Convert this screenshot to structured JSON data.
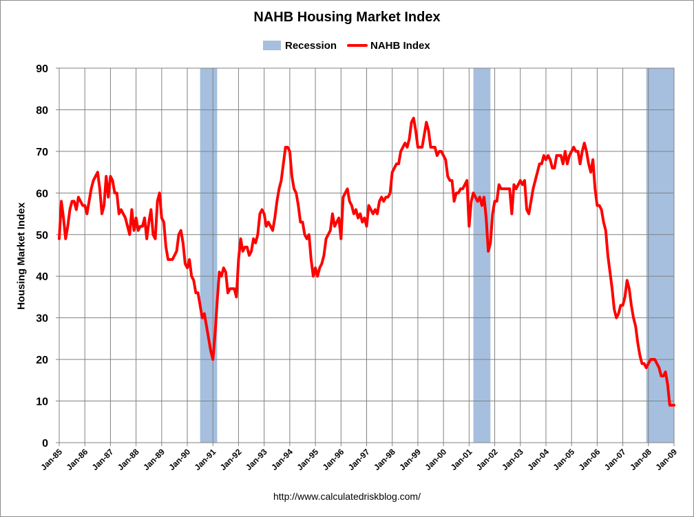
{
  "chart_data": {
    "type": "line",
    "title": "NAHB Housing Market Index",
    "ylabel": "Housing Market Index",
    "xlabel": "",
    "ylim": [
      0,
      90
    ],
    "yticks": [
      0,
      10,
      20,
      30,
      40,
      50,
      60,
      70,
      80,
      90
    ],
    "xrange": [
      "1985-01",
      "2009-01"
    ],
    "x_tick_labels": [
      "Jan-85",
      "Jan-86",
      "Jan-87",
      "Jan-88",
      "Jan-89",
      "Jan-90",
      "Jan-91",
      "Jan-92",
      "Jan-93",
      "Jan-94",
      "Jan-95",
      "Jan-96",
      "Jan-97",
      "Jan-98",
      "Jan-99",
      "Jan-00",
      "Jan-01",
      "Jan-02",
      "Jan-03",
      "Jan-04",
      "Jan-05",
      "Jan-06",
      "Jan-07",
      "Jan-08",
      "Jan-09"
    ],
    "grid": true,
    "legend_position": "top",
    "source": "http://www.calculatedriskblog.com/",
    "colors": {
      "recession": "#a6bfdf",
      "line": "#ff0000",
      "grid": "#808080",
      "plot_border": "#808080"
    },
    "recessions": {
      "name": "Recession",
      "periods": [
        [
          "1990-07",
          "1991-03"
        ],
        [
          "2001-03",
          "2001-11"
        ],
        [
          "2007-12",
          "2009-01"
        ]
      ]
    },
    "series": [
      {
        "name": "NAHB Index",
        "points": [
          [
            "1985-01",
            49
          ],
          [
            "1985-02",
            58
          ],
          [
            "1985-03",
            54
          ],
          [
            "1985-04",
            49
          ],
          [
            "1985-05",
            52
          ],
          [
            "1985-06",
            56
          ],
          [
            "1985-07",
            58
          ],
          [
            "1985-08",
            58
          ],
          [
            "1985-09",
            56
          ],
          [
            "1985-10",
            59
          ],
          [
            "1985-11",
            58
          ],
          [
            "1985-12",
            57
          ],
          [
            "1986-01",
            57
          ],
          [
            "1986-02",
            55
          ],
          [
            "1986-03",
            58
          ],
          [
            "1986-04",
            61
          ],
          [
            "1986-05",
            63
          ],
          [
            "1986-06",
            64
          ],
          [
            "1986-07",
            65
          ],
          [
            "1986-08",
            61
          ],
          [
            "1986-09",
            55
          ],
          [
            "1986-10",
            57
          ],
          [
            "1986-11",
            64
          ],
          [
            "1986-12",
            59
          ],
          [
            "1987-01",
            64
          ],
          [
            "1987-02",
            63
          ],
          [
            "1987-03",
            60
          ],
          [
            "1987-04",
            60
          ],
          [
            "1987-05",
            55
          ],
          [
            "1987-06",
            56
          ],
          [
            "1987-07",
            55
          ],
          [
            "1987-08",
            54
          ],
          [
            "1987-09",
            52
          ],
          [
            "1987-10",
            50
          ],
          [
            "1987-11",
            56
          ],
          [
            "1987-12",
            51
          ],
          [
            "1988-01",
            54
          ],
          [
            "1988-02",
            51
          ],
          [
            "1988-03",
            52
          ],
          [
            "1988-04",
            52
          ],
          [
            "1988-05",
            54
          ],
          [
            "1988-06",
            49
          ],
          [
            "1988-07",
            53
          ],
          [
            "1988-08",
            56
          ],
          [
            "1988-09",
            50
          ],
          [
            "1988-10",
            49
          ],
          [
            "1988-11",
            58
          ],
          [
            "1988-12",
            60
          ],
          [
            "1989-01",
            54
          ],
          [
            "1989-02",
            53
          ],
          [
            "1989-03",
            47
          ],
          [
            "1989-04",
            44
          ],
          [
            "1989-05",
            44
          ],
          [
            "1989-06",
            44
          ],
          [
            "1989-07",
            45
          ],
          [
            "1989-08",
            46
          ],
          [
            "1989-09",
            50
          ],
          [
            "1989-10",
            51
          ],
          [
            "1989-11",
            48
          ],
          [
            "1989-12",
            43
          ],
          [
            "1990-01",
            42
          ],
          [
            "1990-02",
            44
          ],
          [
            "1990-03",
            40
          ],
          [
            "1990-04",
            39
          ],
          [
            "1990-05",
            36
          ],
          [
            "1990-06",
            36
          ],
          [
            "1990-07",
            33
          ],
          [
            "1990-08",
            30
          ],
          [
            "1990-09",
            31
          ],
          [
            "1990-10",
            28
          ],
          [
            "1990-11",
            25
          ],
          [
            "1990-12",
            22
          ],
          [
            "1991-01",
            20
          ],
          [
            "1991-02",
            26
          ],
          [
            "1991-03",
            34
          ],
          [
            "1991-04",
            41
          ],
          [
            "1991-05",
            40
          ],
          [
            "1991-06",
            42
          ],
          [
            "1991-07",
            41
          ],
          [
            "1991-08",
            36
          ],
          [
            "1991-09",
            37
          ],
          [
            "1991-10",
            37
          ],
          [
            "1991-11",
            37
          ],
          [
            "1991-12",
            35
          ],
          [
            "1992-01",
            44
          ],
          [
            "1992-02",
            49
          ],
          [
            "1992-03",
            46
          ],
          [
            "1992-04",
            47
          ],
          [
            "1992-05",
            47
          ],
          [
            "1992-06",
            45
          ],
          [
            "1992-07",
            46
          ],
          [
            "1992-08",
            49
          ],
          [
            "1992-09",
            48
          ],
          [
            "1992-10",
            50
          ],
          [
            "1992-11",
            55
          ],
          [
            "1992-12",
            56
          ],
          [
            "1993-01",
            55
          ],
          [
            "1993-02",
            52
          ],
          [
            "1993-03",
            53
          ],
          [
            "1993-04",
            52
          ],
          [
            "1993-05",
            51
          ],
          [
            "1993-06",
            54
          ],
          [
            "1993-07",
            58
          ],
          [
            "1993-08",
            61
          ],
          [
            "1993-09",
            63
          ],
          [
            "1993-10",
            67
          ],
          [
            "1993-11",
            71
          ],
          [
            "1993-12",
            71
          ],
          [
            "1994-01",
            70
          ],
          [
            "1994-02",
            64
          ],
          [
            "1994-03",
            61
          ],
          [
            "1994-04",
            60
          ],
          [
            "1994-05",
            57
          ],
          [
            "1994-06",
            53
          ],
          [
            "1994-07",
            53
          ],
          [
            "1994-08",
            50
          ],
          [
            "1994-09",
            49
          ],
          [
            "1994-10",
            50
          ],
          [
            "1994-11",
            44
          ],
          [
            "1994-12",
            40
          ],
          [
            "1995-01",
            42
          ],
          [
            "1995-02",
            40
          ],
          [
            "1995-03",
            42
          ],
          [
            "1995-04",
            43
          ],
          [
            "1995-05",
            45
          ],
          [
            "1995-06",
            49
          ],
          [
            "1995-07",
            50
          ],
          [
            "1995-08",
            51
          ],
          [
            "1995-09",
            55
          ],
          [
            "1995-10",
            52
          ],
          [
            "1995-11",
            53
          ],
          [
            "1995-12",
            54
          ],
          [
            "1996-01",
            49
          ],
          [
            "1996-02",
            59
          ],
          [
            "1996-03",
            60
          ],
          [
            "1996-04",
            61
          ],
          [
            "1996-05",
            58
          ],
          [
            "1996-06",
            57
          ],
          [
            "1996-07",
            55
          ],
          [
            "1996-08",
            56
          ],
          [
            "1996-09",
            54
          ],
          [
            "1996-10",
            55
          ],
          [
            "1996-11",
            53
          ],
          [
            "1996-12",
            54
          ],
          [
            "1997-01",
            52
          ],
          [
            "1997-02",
            57
          ],
          [
            "1997-03",
            56
          ],
          [
            "1997-04",
            55
          ],
          [
            "1997-05",
            56
          ],
          [
            "1997-06",
            55
          ],
          [
            "1997-07",
            58
          ],
          [
            "1997-08",
            59
          ],
          [
            "1997-09",
            58
          ],
          [
            "1997-10",
            59
          ],
          [
            "1997-11",
            59
          ],
          [
            "1997-12",
            60
          ],
          [
            "1998-01",
            65
          ],
          [
            "1998-02",
            66
          ],
          [
            "1998-03",
            67
          ],
          [
            "1998-04",
            67
          ],
          [
            "1998-05",
            70
          ],
          [
            "1998-06",
            71
          ],
          [
            "1998-07",
            72
          ],
          [
            "1998-08",
            71
          ],
          [
            "1998-09",
            73
          ],
          [
            "1998-10",
            77
          ],
          [
            "1998-11",
            78
          ],
          [
            "1998-12",
            75
          ],
          [
            "1999-01",
            71
          ],
          [
            "1999-02",
            71
          ],
          [
            "1999-03",
            71
          ],
          [
            "1999-04",
            74
          ],
          [
            "1999-05",
            77
          ],
          [
            "1999-06",
            75
          ],
          [
            "1999-07",
            71
          ],
          [
            "1999-08",
            71
          ],
          [
            "1999-09",
            71
          ],
          [
            "1999-10",
            69
          ],
          [
            "1999-11",
            70
          ],
          [
            "1999-12",
            70
          ],
          [
            "2000-01",
            69
          ],
          [
            "2000-02",
            68
          ],
          [
            "2000-03",
            64
          ],
          [
            "2000-04",
            63
          ],
          [
            "2000-05",
            63
          ],
          [
            "2000-06",
            58
          ],
          [
            "2000-07",
            60
          ],
          [
            "2000-08",
            60
          ],
          [
            "2000-09",
            61
          ],
          [
            "2000-10",
            61
          ],
          [
            "2000-11",
            62
          ],
          [
            "2000-12",
            63
          ],
          [
            "2001-01",
            52
          ],
          [
            "2001-02",
            58
          ],
          [
            "2001-03",
            60
          ],
          [
            "2001-04",
            59
          ],
          [
            "2001-05",
            58
          ],
          [
            "2001-06",
            59
          ],
          [
            "2001-07",
            57
          ],
          [
            "2001-08",
            59
          ],
          [
            "2001-09",
            54
          ],
          [
            "2001-10",
            46
          ],
          [
            "2001-11",
            48
          ],
          [
            "2001-12",
            55
          ],
          [
            "2002-01",
            58
          ],
          [
            "2002-02",
            58
          ],
          [
            "2002-03",
            62
          ],
          [
            "2002-04",
            61
          ],
          [
            "2002-05",
            61
          ],
          [
            "2002-06",
            61
          ],
          [
            "2002-07",
            61
          ],
          [
            "2002-08",
            61
          ],
          [
            "2002-09",
            55
          ],
          [
            "2002-10",
            62
          ],
          [
            "2002-11",
            61
          ],
          [
            "2002-12",
            62
          ],
          [
            "2003-01",
            63
          ],
          [
            "2003-02",
            62
          ],
          [
            "2003-03",
            63
          ],
          [
            "2003-04",
            56
          ],
          [
            "2003-05",
            55
          ],
          [
            "2003-06",
            58
          ],
          [
            "2003-07",
            61
          ],
          [
            "2003-08",
            63
          ],
          [
            "2003-09",
            65
          ],
          [
            "2003-10",
            67
          ],
          [
            "2003-11",
            67
          ],
          [
            "2003-12",
            69
          ],
          [
            "2004-01",
            68
          ],
          [
            "2004-02",
            69
          ],
          [
            "2004-03",
            68
          ],
          [
            "2004-04",
            66
          ],
          [
            "2004-05",
            66
          ],
          [
            "2004-06",
            69
          ],
          [
            "2004-07",
            69
          ],
          [
            "2004-08",
            69
          ],
          [
            "2004-09",
            67
          ],
          [
            "2004-10",
            70
          ],
          [
            "2004-11",
            67
          ],
          [
            "2004-12",
            69
          ],
          [
            "2005-01",
            70
          ],
          [
            "2005-02",
            71
          ],
          [
            "2005-03",
            70
          ],
          [
            "2005-04",
            70
          ],
          [
            "2005-05",
            67
          ],
          [
            "2005-06",
            70
          ],
          [
            "2005-07",
            72
          ],
          [
            "2005-08",
            70
          ],
          [
            "2005-09",
            67
          ],
          [
            "2005-10",
            65
          ],
          [
            "2005-11",
            68
          ],
          [
            "2005-12",
            61
          ],
          [
            "2006-01",
            57
          ],
          [
            "2006-02",
            57
          ],
          [
            "2006-03",
            56
          ],
          [
            "2006-04",
            53
          ],
          [
            "2006-05",
            51
          ],
          [
            "2006-06",
            45
          ],
          [
            "2006-07",
            41
          ],
          [
            "2006-08",
            37
          ],
          [
            "2006-09",
            32
          ],
          [
            "2006-10",
            30
          ],
          [
            "2006-11",
            31
          ],
          [
            "2006-12",
            33
          ],
          [
            "2007-01",
            33
          ],
          [
            "2007-02",
            35
          ],
          [
            "2007-03",
            39
          ],
          [
            "2007-04",
            37
          ],
          [
            "2007-05",
            33
          ],
          [
            "2007-06",
            30
          ],
          [
            "2007-07",
            28
          ],
          [
            "2007-08",
            24
          ],
          [
            "2007-09",
            21
          ],
          [
            "2007-10",
            19
          ],
          [
            "2007-11",
            19
          ],
          [
            "2007-12",
            18
          ],
          [
            "2008-01",
            19
          ],
          [
            "2008-02",
            20
          ],
          [
            "2008-03",
            20
          ],
          [
            "2008-04",
            20
          ],
          [
            "2008-05",
            19
          ],
          [
            "2008-06",
            18
          ],
          [
            "2008-07",
            16
          ],
          [
            "2008-08",
            16
          ],
          [
            "2008-09",
            17
          ],
          [
            "2008-10",
            14
          ],
          [
            "2008-11",
            9
          ],
          [
            "2008-12",
            9
          ],
          [
            "2009-01",
            9
          ]
        ]
      }
    ]
  }
}
